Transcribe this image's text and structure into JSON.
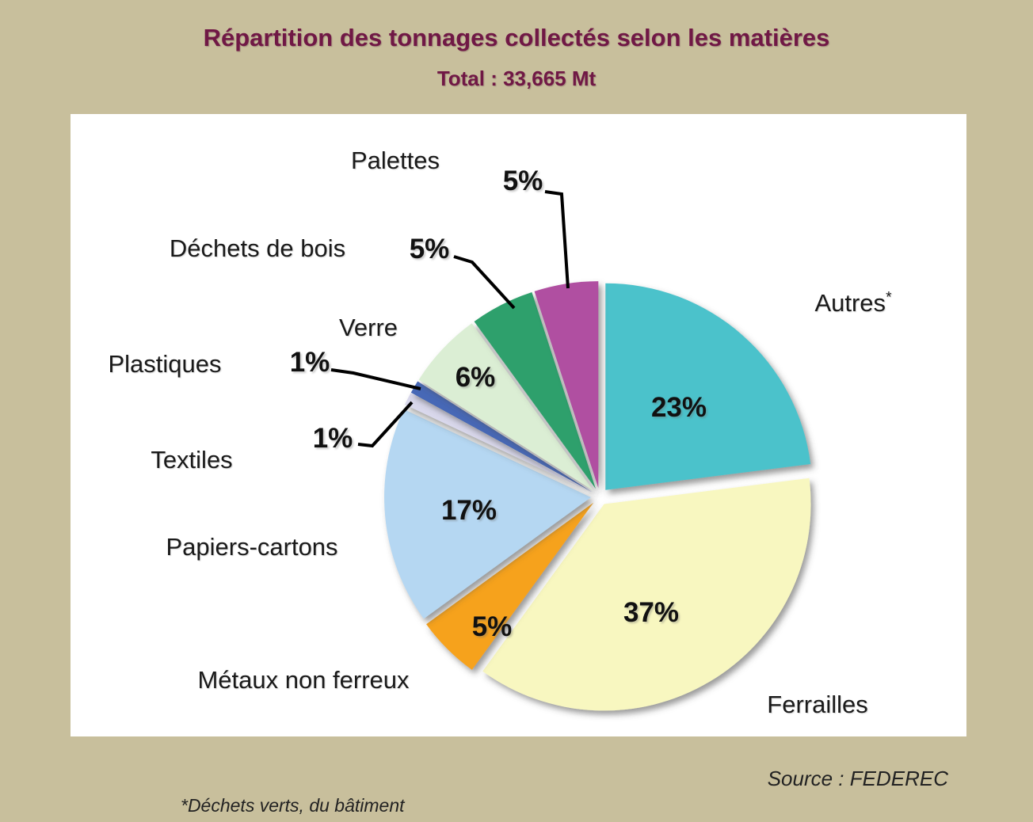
{
  "page": {
    "title": "Répartition des tonnages collectés selon les matières",
    "subtitle": "Total : 33,665 Mt",
    "source": "Source : FEDEREC",
    "footnote": "*Déchets verts, du bâtiment"
  },
  "colors": {
    "background": "#C8BF9C",
    "panel": "#FFFFFF",
    "title_text": "#701845",
    "label_text": "#1A1A1A",
    "leader_line": "#000000"
  },
  "chart_data": {
    "type": "pie",
    "title": "Répartition des tonnages collectés selon les matières",
    "total_label": "Total : 33,665 Mt",
    "unit": "percent",
    "direction": "clockwise",
    "start_angle_deg": 0,
    "exploded": true,
    "legend_position": "labels-around-pie",
    "slices": [
      {
        "label": "Autres*",
        "value": 23,
        "percent_label": "23%",
        "color": "#4CC2CB"
      },
      {
        "label": "Ferrailles",
        "value": 37,
        "percent_label": "37%",
        "color": "#F8F7C0"
      },
      {
        "label": "Métaux non ferreux",
        "value": 5,
        "percent_label": "5%",
        "color": "#F6A21E"
      },
      {
        "label": "Papiers-cartons",
        "value": 17,
        "percent_label": "17%",
        "color": "#B5D7F2"
      },
      {
        "label": "Textiles",
        "value": 1,
        "percent_label": "1%",
        "color": "#D9D8EC"
      },
      {
        "label": "Plastiques",
        "value": 1,
        "percent_label": "1%",
        "color": "#4767B6"
      },
      {
        "label": "Verre",
        "value": 6,
        "percent_label": "6%",
        "color": "#DBEED4"
      },
      {
        "label": "Déchets de bois",
        "value": 5,
        "percent_label": "5%",
        "color": "#2FA06C"
      },
      {
        "label": "Palettes",
        "value": 5,
        "percent_label": "5%",
        "color": "#B050A1"
      }
    ]
  }
}
